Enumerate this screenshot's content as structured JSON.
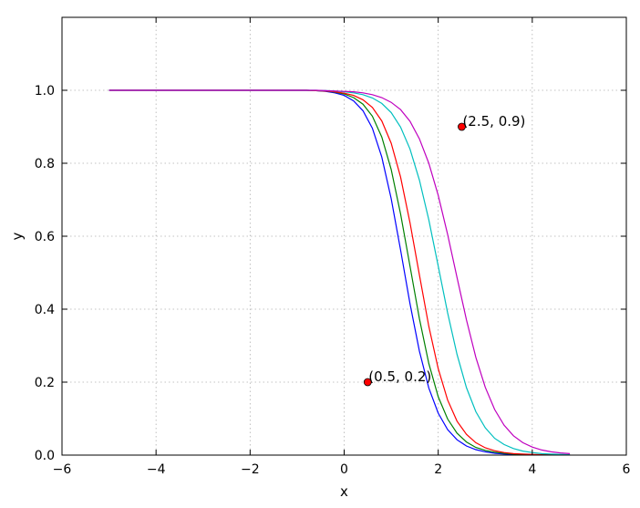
{
  "chart_data": {
    "type": "line",
    "xlabel": "x",
    "ylabel": "y",
    "xlim": [
      -6,
      6
    ],
    "ylim": [
      0.0,
      1.2
    ],
    "grid": true,
    "x_ticks": [
      -6,
      -4,
      -2,
      0,
      2,
      4,
      6
    ],
    "x_tick_labels": [
      "−6",
      "−4",
      "−2",
      "0",
      "2",
      "4",
      "6"
    ],
    "y_ticks": [
      0.0,
      0.2,
      0.4,
      0.6,
      0.8,
      1.0
    ],
    "y_tick_labels": [
      "0.0",
      "0.2",
      "0.4",
      "0.6",
      "0.8",
      "1.0"
    ],
    "x": [
      -5.0,
      -4.8,
      -4.6,
      -4.4,
      -4.2,
      -4.0,
      -3.8,
      -3.6,
      -3.4,
      -3.2,
      -3.0,
      -2.8,
      -2.6,
      -2.4,
      -2.2,
      -2.0,
      -1.8,
      -1.6,
      -1.4,
      -1.2,
      -1.0,
      -0.8,
      -0.6,
      -0.4,
      -0.2,
      0.0,
      0.2,
      0.4,
      0.6,
      0.8,
      1.0,
      1.2,
      1.4,
      1.6,
      1.8,
      2.0,
      2.2,
      2.4,
      2.6,
      2.8,
      3.0,
      3.2,
      3.4,
      3.6,
      3.8,
      4.0,
      4.2,
      4.4,
      4.6,
      4.8
    ],
    "series": [
      {
        "color": "#0000ff",
        "values": [
          1.0,
          1.0,
          1.0,
          1.0,
          1.0,
          1.0,
          1.0,
          1.0,
          1.0,
          1.0,
          1.0,
          1.0,
          1.0,
          1.0,
          1.0,
          1.0,
          1.0,
          1.0,
          1.0,
          1.0,
          1.0,
          1.0,
          0.999,
          0.997,
          0.993,
          0.986,
          0.971,
          0.944,
          0.896,
          0.817,
          0.703,
          0.562,
          0.415,
          0.285,
          0.184,
          0.115,
          0.07,
          0.042,
          0.025,
          0.015,
          0.009,
          0.005,
          0.003,
          0.002,
          0.001,
          0.0006,
          0.0004,
          0.0002,
          0.0001,
          0.0001
        ]
      },
      {
        "color": "#008000",
        "values": [
          1.0,
          1.0,
          1.0,
          1.0,
          1.0,
          1.0,
          1.0,
          1.0,
          1.0,
          1.0,
          1.0,
          1.0,
          1.0,
          1.0,
          1.0,
          1.0,
          1.0,
          1.0,
          1.0,
          1.0,
          1.0,
          1.0,
          0.999,
          0.998,
          0.995,
          0.99,
          0.98,
          0.962,
          0.929,
          0.872,
          0.783,
          0.661,
          0.518,
          0.374,
          0.251,
          0.16,
          0.099,
          0.06,
          0.036,
          0.021,
          0.013,
          0.008,
          0.005,
          0.003,
          0.002,
          0.001,
          0.0006,
          0.0004,
          0.0002,
          0.0001
        ]
      },
      {
        "color": "#ff0000",
        "values": [
          1.0,
          1.0,
          1.0,
          1.0,
          1.0,
          1.0,
          1.0,
          1.0,
          1.0,
          1.0,
          1.0,
          1.0,
          1.0,
          1.0,
          1.0,
          1.0,
          1.0,
          1.0,
          1.0,
          1.0,
          1.0,
          1.0,
          0.999,
          0.998,
          0.996,
          0.992,
          0.986,
          0.974,
          0.953,
          0.916,
          0.855,
          0.762,
          0.637,
          0.494,
          0.353,
          0.237,
          0.151,
          0.093,
          0.057,
          0.034,
          0.02,
          0.012,
          0.007,
          0.004,
          0.003,
          0.002,
          0.001,
          0.0006,
          0.0004,
          0.0002
        ]
      },
      {
        "color": "#00bfbf",
        "values": [
          1.0,
          1.0,
          1.0,
          1.0,
          1.0,
          1.0,
          1.0,
          1.0,
          1.0,
          1.0,
          1.0,
          1.0,
          1.0,
          1.0,
          1.0,
          1.0,
          1.0,
          1.0,
          1.0,
          1.0,
          1.0,
          1.0,
          1.0,
          0.999,
          0.998,
          0.996,
          0.993,
          0.988,
          0.979,
          0.964,
          0.939,
          0.899,
          0.839,
          0.754,
          0.645,
          0.518,
          0.39,
          0.276,
          0.185,
          0.119,
          0.075,
          0.046,
          0.029,
          0.018,
          0.011,
          0.007,
          0.004,
          0.003,
          0.002,
          0.001
        ]
      },
      {
        "color": "#bf00bf",
        "values": [
          1.0,
          1.0,
          1.0,
          1.0,
          1.0,
          1.0,
          1.0,
          1.0,
          1.0,
          1.0,
          1.0,
          1.0,
          1.0,
          1.0,
          1.0,
          1.0,
          1.0,
          1.0,
          1.0,
          1.0,
          1.0,
          1.0,
          1.0,
          0.999,
          0.998,
          0.997,
          0.996,
          0.993,
          0.988,
          0.98,
          0.967,
          0.947,
          0.915,
          0.867,
          0.8,
          0.712,
          0.605,
          0.487,
          0.371,
          0.268,
          0.186,
          0.125,
          0.082,
          0.053,
          0.034,
          0.022,
          0.014,
          0.009,
          0.006,
          0.004
        ]
      }
    ],
    "annotations": [
      {
        "x": 0.5,
        "y": 0.2,
        "text": "(0.5, 0.2)",
        "color": "#ff0000"
      },
      {
        "x": 2.5,
        "y": 0.9,
        "text": "(2.5, 0.9)",
        "color": "#ff0000"
      }
    ]
  }
}
